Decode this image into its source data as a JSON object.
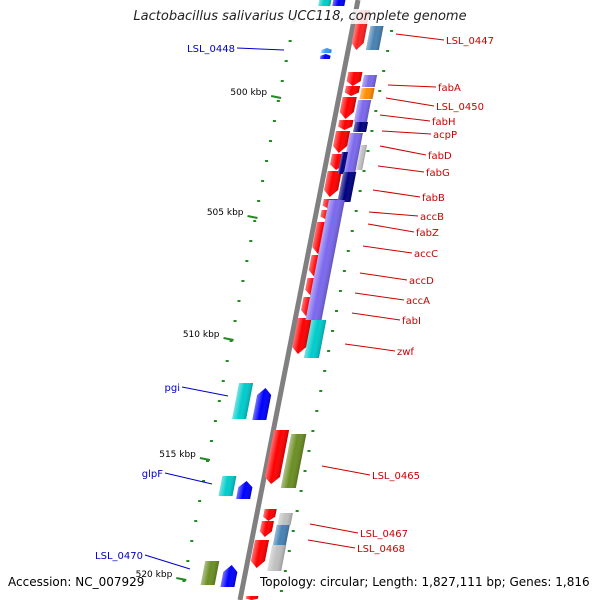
{
  "header": {
    "title": "Lactobacillus salivarius UCC118, complete genome"
  },
  "footer": {
    "accession": "Accession: NC_007929",
    "topology": "Topology: circular; Length: 1,827,111 bp; Genes: 1,816"
  },
  "colors": {
    "forward_cds": "#ff0000",
    "reverse_cds": "#0000ff",
    "cyan_feature": "#00cccc",
    "olive_feature": "#6b8e23",
    "steelblue_feature": "#4682b4",
    "purple_feature": "#7b68ee",
    "navy_feature": "#000080",
    "orange_feature": "#ff8c00",
    "grey_feature": "#c0c0c0",
    "forward_label": "#cc0000",
    "reverse_label": "#0000cc",
    "backbone": "#808080",
    "tick_mark": "#228b22"
  },
  "ticks": [
    {
      "label": "500 kbp"
    },
    {
      "label": "505 kbp"
    },
    {
      "label": "510 kbp"
    },
    {
      "label": "515 kbp"
    },
    {
      "label": "520 kbp"
    }
  ],
  "forward_labels": [
    {
      "text": "LSL_0447"
    },
    {
      "text": "fabA"
    },
    {
      "text": "LSL_0450"
    },
    {
      "text": "fabH"
    },
    {
      "text": "acpP"
    },
    {
      "text": "fabD"
    },
    {
      "text": "fabG"
    },
    {
      "text": "fabB"
    },
    {
      "text": "accB"
    },
    {
      "text": "fabZ"
    },
    {
      "text": "accC"
    },
    {
      "text": "accD"
    },
    {
      "text": "accA"
    },
    {
      "text": "fabI"
    },
    {
      "text": "zwf"
    },
    {
      "text": "LSL_0465"
    },
    {
      "text": "LSL_0467"
    },
    {
      "text": "LSL_0468"
    }
  ],
  "reverse_labels": [
    {
      "text": "LSL_0448"
    },
    {
      "text": "pgi"
    },
    {
      "text": "glpF"
    },
    {
      "text": "LSL_0470"
    }
  ]
}
